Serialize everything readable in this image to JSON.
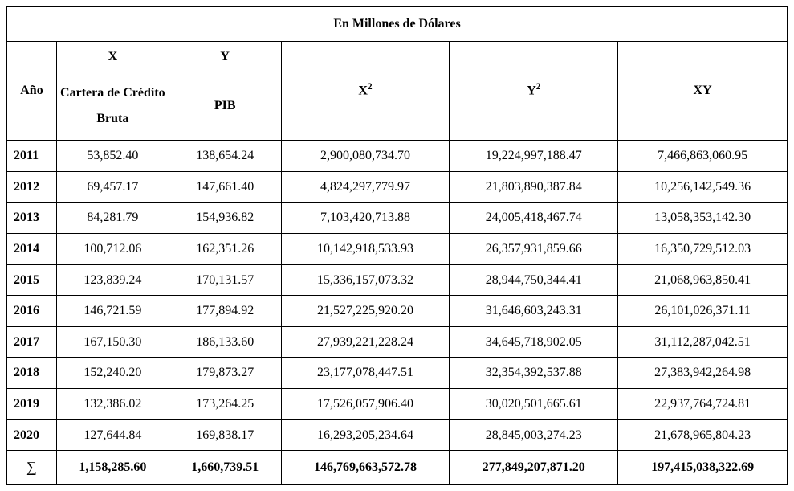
{
  "table": {
    "title": "En Millones de Dólares",
    "headers": {
      "year": "Año",
      "x_top": "X",
      "y_top": "Y",
      "x_sub": "Cartera de Crédito Bruta",
      "y_sub": "PIB",
      "x2": "X²",
      "y2": "Y²",
      "xy": "XY"
    },
    "rows": [
      {
        "year": "2011",
        "x": "53,852.40",
        "y": "138,654.24",
        "x2": "2,900,080,734.70",
        "y2": "19,224,997,188.47",
        "xy": "7,466,863,060.95"
      },
      {
        "year": "2012",
        "x": "69,457.17",
        "y": "147,661.40",
        "x2": "4,824,297,779.97",
        "y2": "21,803,890,387.84",
        "xy": "10,256,142,549.36"
      },
      {
        "year": "2013",
        "x": "84,281.79",
        "y": "154,936.82",
        "x2": "7,103,420,713.88",
        "y2": "24,005,418,467.74",
        "xy": "13,058,353,142.30"
      },
      {
        "year": "2014",
        "x": "100,712.06",
        "y": "162,351.26",
        "x2": "10,142,918,533.93",
        "y2": "26,357,931,859.66",
        "xy": "16,350,729,512.03"
      },
      {
        "year": "2015",
        "x": "123,839.24",
        "y": "170,131.57",
        "x2": "15,336,157,073.32",
        "y2": "28,944,750,344.41",
        "xy": "21,068,963,850.41"
      },
      {
        "year": "2016",
        "x": "146,721.59",
        "y": "177,894.92",
        "x2": "21,527,225,920.20",
        "y2": "31,646,603,243.31",
        "xy": "26,101,026,371.11"
      },
      {
        "year": "2017",
        "x": "167,150.30",
        "y": "186,133.60",
        "x2": "27,939,221,228.24",
        "y2": "34,645,718,902.05",
        "xy": "31,112,287,042.51"
      },
      {
        "year": "2018",
        "x": "152,240.20",
        "y": "179,873.27",
        "x2": "23,177,078,447.51",
        "y2": "32,354,392,537.88",
        "xy": "27,383,942,264.98"
      },
      {
        "year": "2019",
        "x": "132,386.02",
        "y": "173,264.25",
        "x2": "17,526,057,906.40",
        "y2": "30,020,501,665.61",
        "xy": "22,937,764,724.81"
      },
      {
        "year": "2020",
        "x": "127,644.84",
        "y": "169,838.17",
        "x2": "16,293,205,234.64",
        "y2": "28,845,003,274.23",
        "xy": "21,678,965,804.23"
      }
    ],
    "sum": {
      "symbol": "∑",
      "x": "1,158,285.60",
      "y": "1,660,739.51",
      "x2": "146,769,663,572.78",
      "y2": "277,849,207,871.20",
      "xy": "197,415,038,322.69"
    }
  }
}
